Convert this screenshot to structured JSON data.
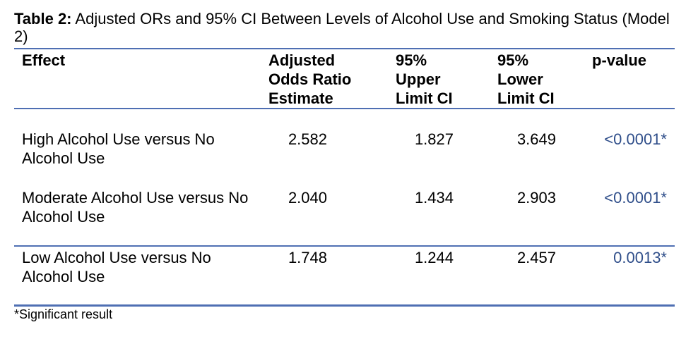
{
  "caption": {
    "label": "Table 2:",
    "text": " Adjusted ORs and 95% CI Between Levels of Alcohol Use and Smoking Status (Model 2)"
  },
  "headers": {
    "effect": "Effect",
    "or_line1": "Adjusted",
    "or_line2": "Odds Ratio",
    "or_line3": "Estimate",
    "upper_line1": "95%",
    "upper_line2": "Upper",
    "upper_line3": "Limit CI",
    "lower_line1": "95%",
    "lower_line2": "Lower",
    "lower_line3": "Limit CI",
    "pvalue": "p-value"
  },
  "rows": [
    {
      "effect": "High Alcohol Use versus No Alcohol Use",
      "or": "2.582",
      "upper": "1.827",
      "lower": "3.649",
      "p": "<0.0001*"
    },
    {
      "effect": "Moderate Alcohol Use versus No Alcohol Use",
      "or": "2.040",
      "upper": "1.434",
      "lower": "2.903",
      "p": "<0.0001*"
    },
    {
      "effect": "Low Alcohol Use versus No Alcohol Use",
      "or": "1.748",
      "upper": "1.244",
      "lower": "2.457",
      "p": "0.0013*"
    }
  ],
  "footnote": "*Significant result",
  "colors": {
    "rule": "#4f6fb3",
    "pvalue_text": "#2f4e8a"
  }
}
